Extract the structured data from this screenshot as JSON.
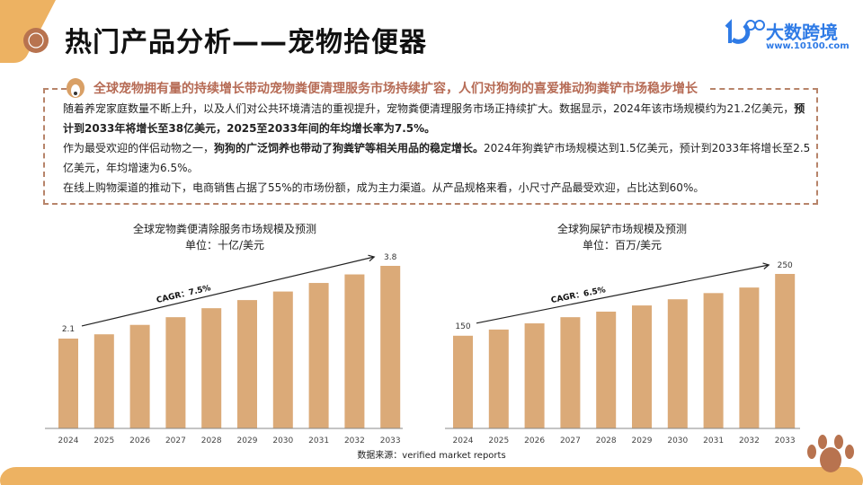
{
  "header": {
    "title": "热门产品分析——宠物拾便器",
    "logo_name": "大数跨境",
    "logo_url": "www.10100.com"
  },
  "colors": {
    "accent": "#EDB262",
    "brown": "#B8734F",
    "bar": "#DBAA78",
    "logo": "#2F7BE6"
  },
  "summary": {
    "headline": "全球宠物拥有量的持续增长带动宠物粪便清理服务市场持续扩容，人们对狗狗的喜爱推动狗粪铲市场稳步增长",
    "p1_a": "随着养宠家庭数量不断上升，以及人们对公共环境清洁的重视提升，宠物粪便清理服务市场正持续扩大。数据显示，2024年该市场规模约为21.2亿美元，",
    "p1_b": "预计到2033年将增长至38亿美元，2025至2033年间的年均增长率为7.5%。",
    "p2_a": "作为最受欢迎的伴侣动物之一，",
    "p2_b": "狗狗的广泛饲养也带动了狗粪铲等相关用品的稳定增长。",
    "p2_c": "2024年狗粪铲市场规模达到1.5亿美元，预计到2033年将增长至2.5亿美元，年均增速为6.5%。",
    "p3": "在线上购物渠道的推动下，电商销售占据了55%的市场份额，成为主力渠道。从产品规格来看，小尺寸产品最受欢迎，占比达到60%。"
  },
  "source": "数据来源：verified market reports",
  "chart_data": [
    {
      "type": "bar",
      "title": "全球宠物粪便清除服务市场规模及预测",
      "subtitle": "单位：十亿/美元",
      "categories": [
        "2024",
        "2025",
        "2026",
        "2027",
        "2028",
        "2029",
        "2030",
        "2031",
        "2032",
        "2033"
      ],
      "values": [
        2.1,
        2.2,
        2.42,
        2.6,
        2.81,
        3.0,
        3.2,
        3.4,
        3.6,
        3.8
      ],
      "data_labels": {
        "first": "2.1",
        "last": "3.8"
      },
      "annotation": "CAGR：7.5%",
      "ylim": [
        0,
        3.8
      ]
    },
    {
      "type": "bar",
      "title": "全球狗屎铲市场规模及预测",
      "subtitle": "单位：百万/美元",
      "categories": [
        "2024",
        "2025",
        "2026",
        "2027",
        "2028",
        "2029",
        "2030",
        "2031",
        "2032",
        "2033"
      ],
      "values": [
        150,
        160,
        170,
        180,
        189,
        199,
        209,
        219,
        228,
        250
      ],
      "data_labels": {
        "first": "150",
        "last": "250"
      },
      "annotation": "CAGR：6.5%",
      "ylim": [
        0,
        250
      ]
    }
  ]
}
